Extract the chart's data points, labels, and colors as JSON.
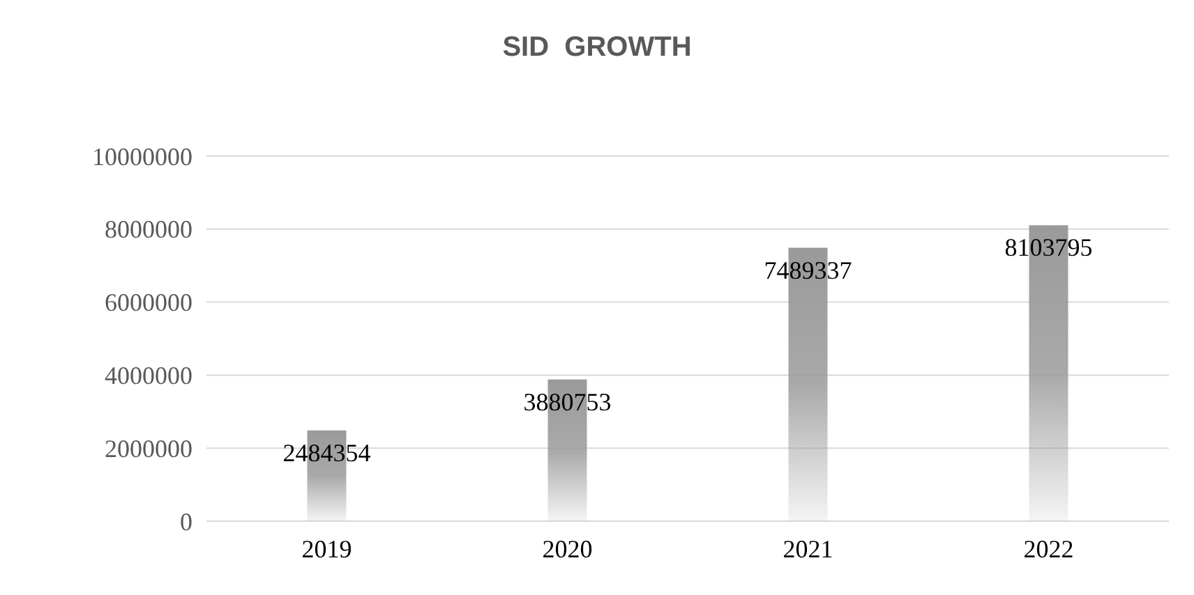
{
  "chart_data": {
    "type": "bar",
    "title": "SID  GROWTH",
    "categories": [
      "2019",
      "2020",
      "2021",
      "2022"
    ],
    "values": [
      2484354,
      3880753,
      7489337,
      8103795
    ],
    "color": "#9a9a9a",
    "ylim": [
      0,
      10000000
    ],
    "yticks": [
      0,
      2000000,
      4000000,
      6000000,
      8000000,
      10000000
    ],
    "grid": "y",
    "data_labels": true
  }
}
